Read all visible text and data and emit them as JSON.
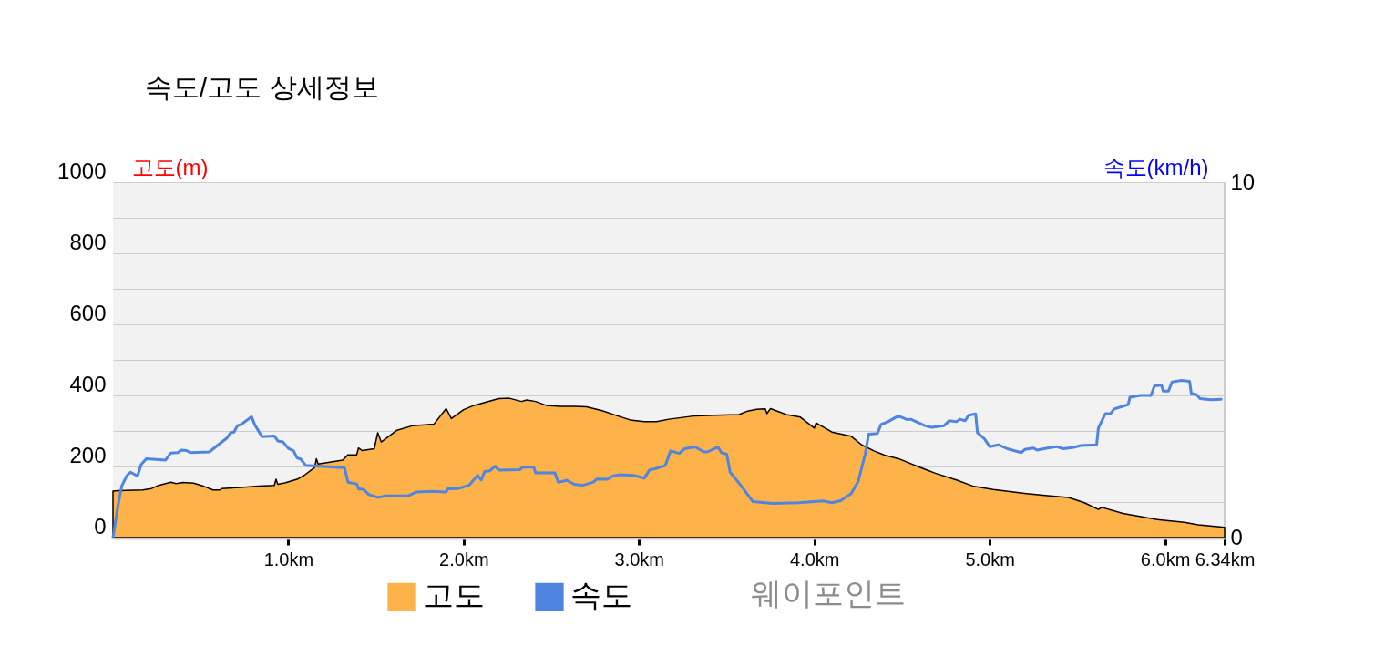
{
  "chart_data": {
    "type": "area",
    "title": "속도/고도 상세정보",
    "ylabel": "고도(m)",
    "y2label": "속도(km/h)",
    "xlim": [
      0,
      6.34
    ],
    "xticks": [
      {
        "value": 1,
        "label": "1.0km"
      },
      {
        "value": 2,
        "label": "2.0km"
      },
      {
        "value": 3,
        "label": "3.0km"
      },
      {
        "value": 4,
        "label": "4.0km"
      },
      {
        "value": 5,
        "label": "5.0km"
      },
      {
        "value": 6,
        "label": "6.0km"
      },
      {
        "value": 6.34,
        "label": "6.34km"
      }
    ],
    "ylim": [
      0,
      1000
    ],
    "yticks": [
      0,
      {
        "value": 100,
        "label": null
      },
      200,
      {
        "value": 300,
        "label": null
      },
      400,
      {
        "value": 500,
        "label": null
      },
      600,
      {
        "value": 700,
        "label": null
      },
      800,
      {
        "value": 900,
        "label": null
      },
      1000
    ],
    "y2lim": [
      0,
      10
    ],
    "y2ticks": [
      0,
      10
    ],
    "grid": "y",
    "legend": "bottom",
    "annotations": [
      "웨이포인트"
    ],
    "series": [
      {
        "name": "고도",
        "color": "#fdb24a",
        "x": [
          0,
          0.03,
          0.17,
          0.22,
          0.26,
          0.33,
          0.36,
          0.4,
          0.46,
          0.52,
          0.57,
          0.61,
          0.62,
          0.73,
          0.83,
          0.92,
          0.93,
          0.94,
          0.98,
          1.05,
          1.09,
          1.15,
          1.16,
          1.17,
          1.31,
          1.34,
          1.39,
          1.4,
          1.42,
          1.49,
          1.51,
          1.53,
          1.62,
          1.71,
          1.83,
          1.9,
          1.93,
          2.0,
          2.06,
          2.12,
          2.2,
          2.26,
          2.33,
          2.36,
          2.41,
          2.47,
          2.55,
          2.63,
          2.7,
          2.79,
          2.88,
          2.95,
          3.03,
          3.1,
          3.17,
          3.31,
          3.43,
          3.57,
          3.62,
          3.67,
          3.72,
          3.73,
          3.75,
          3.84,
          3.92,
          4.0,
          4.01,
          4.1,
          4.21,
          4.27,
          4.34,
          4.4,
          4.48,
          4.6,
          4.69,
          4.81,
          4.91,
          5.02,
          5.21,
          5.33,
          5.45,
          5.54,
          5.62,
          5.64,
          5.76,
          5.95,
          6.11,
          6.19,
          6.34
        ],
        "values": [
          131,
          132,
          134,
          138,
          147,
          156,
          152,
          155,
          153,
          144,
          134,
          134,
          138,
          141,
          145,
          147,
          164,
          150,
          154,
          164,
          175,
          197,
          222,
          207,
          218,
          233,
          233,
          252,
          245,
          250,
          295,
          269,
          302,
          315,
          319,
          363,
          335,
          360,
          372,
          380,
          391,
          392,
          383,
          387,
          383,
          372,
          369,
          369,
          368,
          357,
          342,
          331,
          326,
          326,
          333,
          342,
          344,
          346,
          356,
          361,
          362,
          349,
          363,
          346,
          339,
          308,
          323,
          297,
          285,
          261,
          244,
          232,
          222,
          198,
          181,
          162,
          144,
          135,
          124,
          118,
          113,
          98,
          79,
          85,
          68,
          51,
          43,
          36,
          29
        ]
      },
      {
        "name": "속도",
        "type": "line",
        "axis": "y2",
        "color": "#4f84e0",
        "x": [
          0,
          0.03,
          0.05,
          0.08,
          0.1,
          0.14,
          0.16,
          0.19,
          0.3,
          0.33,
          0.37,
          0.39,
          0.42,
          0.44,
          0.55,
          0.6,
          0.65,
          0.67,
          0.69,
          0.71,
          0.73,
          0.79,
          0.81,
          0.85,
          0.92,
          0.94,
          0.97,
          1.0,
          1.03,
          1.05,
          1.07,
          1.1,
          1.16,
          1.32,
          1.34,
          1.39,
          1.4,
          1.43,
          1.46,
          1.51,
          1.55,
          1.68,
          1.73,
          1.82,
          1.9,
          1.91,
          1.97,
          2.03,
          2.08,
          2.1,
          2.12,
          2.15,
          2.18,
          2.2,
          2.32,
          2.34,
          2.4,
          2.41,
          2.52,
          2.54,
          2.59,
          2.63,
          2.68,
          2.74,
          2.76,
          2.82,
          2.85,
          2.89,
          2.97,
          3.03,
          3.06,
          3.1,
          3.15,
          3.18,
          3.23,
          3.26,
          3.32,
          3.37,
          3.39,
          3.45,
          3.47,
          3.5,
          3.52,
          3.58,
          3.65,
          3.76,
          3.91,
          4.05,
          4.1,
          4.15,
          4.21,
          4.25,
          4.29,
          4.31,
          4.36,
          4.38,
          4.42,
          4.47,
          4.49,
          4.53,
          4.55,
          4.63,
          4.67,
          4.74,
          4.77,
          4.81,
          4.83,
          4.86,
          4.88,
          4.92,
          4.93,
          4.97,
          5.0,
          5.05,
          5.1,
          5.18,
          5.2,
          5.25,
          5.27,
          5.33,
          5.38,
          5.42,
          5.48,
          5.52,
          5.61,
          5.62,
          5.66,
          5.69,
          5.71,
          5.75,
          5.79,
          5.8,
          5.86,
          5.92,
          5.94,
          5.98,
          5.99,
          6.02,
          6.04,
          6.09,
          6.14,
          6.15,
          6.18,
          6.2,
          6.26,
          6.32
        ],
        "values": [
          0,
          0.94,
          1.45,
          1.75,
          1.84,
          1.73,
          2.05,
          2.22,
          2.18,
          2.38,
          2.39,
          2.46,
          2.45,
          2.39,
          2.41,
          2.61,
          2.8,
          2.95,
          2.97,
          3.15,
          3.18,
          3.4,
          3.16,
          2.84,
          2.86,
          2.72,
          2.69,
          2.51,
          2.44,
          2.24,
          2.21,
          2.03,
          2.01,
          1.97,
          1.56,
          1.51,
          1.37,
          1.35,
          1.21,
          1.13,
          1.17,
          1.17,
          1.28,
          1.3,
          1.28,
          1.37,
          1.38,
          1.47,
          1.75,
          1.62,
          1.86,
          1.88,
          2.01,
          1.9,
          1.91,
          1.99,
          1.98,
          1.82,
          1.82,
          1.56,
          1.61,
          1.5,
          1.47,
          1.56,
          1.65,
          1.64,
          1.73,
          1.77,
          1.75,
          1.67,
          1.9,
          1.95,
          2.03,
          2.44,
          2.37,
          2.5,
          2.55,
          2.41,
          2.41,
          2.55,
          2.39,
          2.35,
          1.84,
          1.47,
          1.01,
          0.96,
          0.98,
          1.03,
          0.98,
          1.04,
          1.24,
          1.58,
          2.35,
          2.91,
          2.93,
          3.18,
          3.26,
          3.4,
          3.4,
          3.32,
          3.33,
          3.15,
          3.1,
          3.15,
          3.29,
          3.26,
          3.33,
          3.29,
          3.44,
          3.48,
          2.95,
          2.78,
          2.56,
          2.61,
          2.5,
          2.39,
          2.48,
          2.52,
          2.46,
          2.52,
          2.56,
          2.5,
          2.54,
          2.59,
          2.61,
          3.08,
          3.49,
          3.49,
          3.62,
          3.68,
          3.74,
          3.95,
          4.0,
          4.0,
          4.27,
          4.29,
          4.12,
          4.12,
          4.38,
          4.42,
          4.4,
          4.06,
          4.02,
          3.91,
          3.88,
          3.89
        ]
      }
    ]
  }
}
